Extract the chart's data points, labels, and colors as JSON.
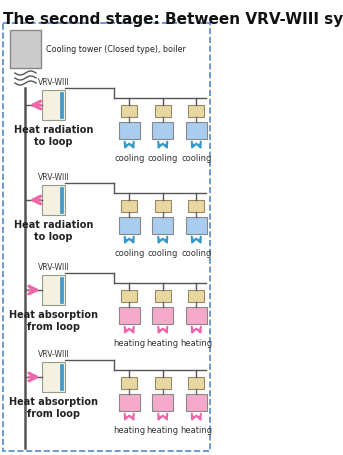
{
  "title": "The second stage: Between VRV-WIII systems",
  "title_fontsize": 11,
  "bg_color": "#ffffff",
  "border_color": "#5588cc",
  "cooling_tower_color": "#cccccc",
  "vrv_body_color": "#f5f0e0",
  "vrv_accent_color": "#4499cc",
  "indoor_cooling_color": "#aaccee",
  "indoor_heating_color": "#f5aacc",
  "indoor_top_color": "#e8d8a0",
  "arrow_cooling_color": "#3399cc",
  "arrow_heating_color": "#ee66aa",
  "line_color": "#555555",
  "sections": [
    {
      "label": "Heat radiation\nto loop",
      "mode": "cooling",
      "arrow_dir": "left"
    },
    {
      "label": "Heat radiation\nto loop",
      "mode": "cooling",
      "arrow_dir": "left"
    },
    {
      "label": "Heat absorption\nfrom loop",
      "mode": "heating",
      "arrow_dir": "right"
    },
    {
      "label": "Heat absorption\nfrom loop",
      "mode": "heating",
      "arrow_dir": "right"
    }
  ]
}
